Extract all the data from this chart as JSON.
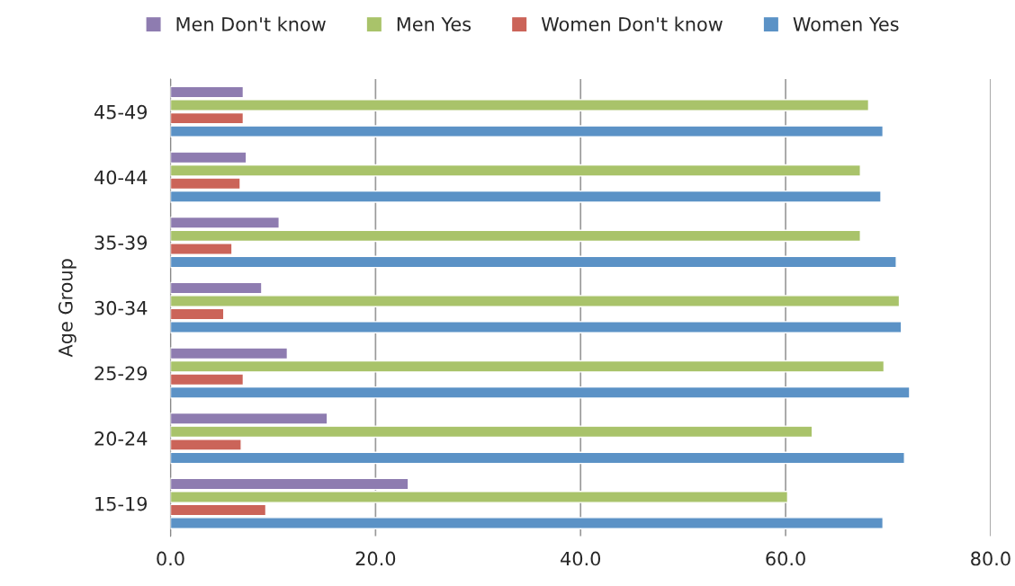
{
  "chart_data": {
    "type": "bar",
    "orientation": "horizontal",
    "ylabel": "Age Group",
    "categories": [
      "45-49",
      "40-44",
      "35-39",
      "30-34",
      "25-29",
      "20-24",
      "15-19"
    ],
    "series": [
      {
        "name": "Men Don't know",
        "color": "#8e7cb0",
        "values": [
          7.1,
          7.4,
          10.6,
          8.9,
          11.4,
          15.3,
          23.2
        ]
      },
      {
        "name": "Men Yes",
        "color": "#a9c36a",
        "values": [
          68.1,
          67.3,
          67.3,
          71.1,
          69.6,
          62.6,
          60.2
        ]
      },
      {
        "name": "Women Don't know",
        "color": "#cb6459",
        "values": [
          7.1,
          6.8,
          6.0,
          5.2,
          7.1,
          6.9,
          9.3
        ]
      },
      {
        "name": "Women Yes",
        "color": "#5b92c6",
        "values": [
          69.5,
          69.3,
          70.8,
          71.3,
          72.1,
          71.6,
          69.5
        ]
      }
    ],
    "xlim": [
      0,
      80
    ],
    "xticks": [
      {
        "value": 0,
        "label": "0.0"
      },
      {
        "value": 20,
        "label": "20.0"
      },
      {
        "value": 40,
        "label": "40.0"
      },
      {
        "value": 60,
        "label": "60.0"
      },
      {
        "value": 80,
        "label": "80.0"
      }
    ],
    "grid": "x",
    "legend": "top"
  }
}
